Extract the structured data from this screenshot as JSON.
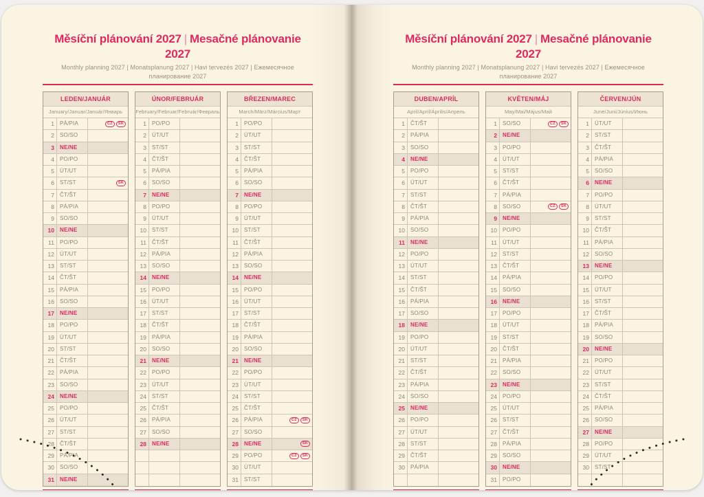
{
  "header": {
    "title_cs": "Měsíční plánování 2027",
    "title_sk": "Mesačné plánovanie 2027",
    "separator": "|",
    "subtitle": "Monthly planning 2027 | Monatsplanung 2027 | Havi tervezés 2027 | Ежемесячное планирование 2027"
  },
  "colors": {
    "paper": "#fcf4e3",
    "headbg": "#ece3d3",
    "sunbg": "#e9e0d1",
    "border": "#cfc5b4",
    "border-dark": "#a69c8b",
    "ink": "#8d8374",
    "muted": "#9a9080",
    "accent": "#dc2a5f",
    "rule": "#bb2c50"
  },
  "rows_per_month": 31,
  "months_left": [
    {
      "name": "LEDEN/JANUÁR",
      "subtitle": "January/Januar/Január/Январь",
      "days": [
        [
          1,
          "PÁ/PIA",
          [
            "CZ",
            "SK"
          ]
        ],
        [
          2,
          "SO/SO"
        ],
        [
          3,
          "NE/NE"
        ],
        [
          4,
          "PO/PO"
        ],
        [
          5,
          "ÚT/UT"
        ],
        [
          6,
          "ST/ST",
          [
            "SK"
          ]
        ],
        [
          7,
          "ČT/ŠT"
        ],
        [
          8,
          "PÁ/PIA"
        ],
        [
          9,
          "SO/SO"
        ],
        [
          10,
          "NE/NE"
        ],
        [
          11,
          "PO/PO"
        ],
        [
          12,
          "ÚT/UT"
        ],
        [
          13,
          "ST/ST"
        ],
        [
          14,
          "ČT/ŠT"
        ],
        [
          15,
          "PÁ/PIA"
        ],
        [
          16,
          "SO/SO"
        ],
        [
          17,
          "NE/NE"
        ],
        [
          18,
          "PO/PO"
        ],
        [
          19,
          "ÚT/UT"
        ],
        [
          20,
          "ST/ST"
        ],
        [
          21,
          "ČT/ŠT"
        ],
        [
          22,
          "PÁ/PIA"
        ],
        [
          23,
          "SO/SO"
        ],
        [
          24,
          "NE/NE"
        ],
        [
          25,
          "PO/PO"
        ],
        [
          26,
          "ÚT/UT"
        ],
        [
          27,
          "ST/ST"
        ],
        [
          28,
          "ČT/ŠT"
        ],
        [
          29,
          "PÁ/PIA"
        ],
        [
          30,
          "SO/SO"
        ],
        [
          31,
          "NE/NE"
        ]
      ]
    },
    {
      "name": "ÚNOR/FEBRUÁR",
      "subtitle": "February/Februar/Február/Февраль",
      "days": [
        [
          1,
          "PO/PO"
        ],
        [
          2,
          "ÚT/UT"
        ],
        [
          3,
          "ST/ST"
        ],
        [
          4,
          "ČT/ŠT"
        ],
        [
          5,
          "PÁ/PIA"
        ],
        [
          6,
          "SO/SO"
        ],
        [
          7,
          "NE/NE"
        ],
        [
          8,
          "PO/PO"
        ],
        [
          9,
          "ÚT/UT"
        ],
        [
          10,
          "ST/ST"
        ],
        [
          11,
          "ČT/ŠT"
        ],
        [
          12,
          "PÁ/PIA"
        ],
        [
          13,
          "SO/SO"
        ],
        [
          14,
          "NE/NE"
        ],
        [
          15,
          "PO/PO"
        ],
        [
          16,
          "ÚT/UT"
        ],
        [
          17,
          "ST/ST"
        ],
        [
          18,
          "ČT/ŠT"
        ],
        [
          19,
          "PÁ/PIA"
        ],
        [
          20,
          "SO/SO"
        ],
        [
          21,
          "NE/NE"
        ],
        [
          22,
          "PO/PO"
        ],
        [
          23,
          "ÚT/UT"
        ],
        [
          24,
          "ST/ST"
        ],
        [
          25,
          "ČT/ŠT"
        ],
        [
          26,
          "PÁ/PIA"
        ],
        [
          27,
          "SO/SO"
        ],
        [
          28,
          "NE/NE"
        ]
      ]
    },
    {
      "name": "BŘEZEN/MAREC",
      "subtitle": "March/März/Március/Март",
      "days": [
        [
          1,
          "PO/PO"
        ],
        [
          2,
          "ÚT/UT"
        ],
        [
          3,
          "ST/ST"
        ],
        [
          4,
          "ČT/ŠT"
        ],
        [
          5,
          "PÁ/PIA"
        ],
        [
          6,
          "SO/SO"
        ],
        [
          7,
          "NE/NE"
        ],
        [
          8,
          "PO/PO"
        ],
        [
          9,
          "ÚT/UT"
        ],
        [
          10,
          "ST/ST"
        ],
        [
          11,
          "ČT/ŠT"
        ],
        [
          12,
          "PÁ/PIA"
        ],
        [
          13,
          "SO/SO"
        ],
        [
          14,
          "NE/NE"
        ],
        [
          15,
          "PO/PO"
        ],
        [
          16,
          "ÚT/UT"
        ],
        [
          17,
          "ST/ST"
        ],
        [
          18,
          "ČT/ŠT"
        ],
        [
          19,
          "PÁ/PIA"
        ],
        [
          20,
          "SO/SO"
        ],
        [
          21,
          "NE/NE"
        ],
        [
          22,
          "PO/PO"
        ],
        [
          23,
          "ÚT/UT"
        ],
        [
          24,
          "ST/ST"
        ],
        [
          25,
          "ČT/ŠT"
        ],
        [
          26,
          "PÁ/PIA",
          [
            "CZ",
            "SK"
          ]
        ],
        [
          27,
          "SO/SO"
        ],
        [
          28,
          "NE/NE",
          [
            "SK"
          ]
        ],
        [
          29,
          "PO/PO",
          [
            "CZ",
            "SK"
          ]
        ],
        [
          30,
          "ÚT/UT"
        ],
        [
          31,
          "ST/ST"
        ]
      ]
    }
  ],
  "months_right": [
    {
      "name": "DUBEN/APRÍL",
      "subtitle": "April/April/Április/Апрель",
      "days": [
        [
          1,
          "ČT/ŠT"
        ],
        [
          2,
          "PÁ/PIA"
        ],
        [
          3,
          "SO/SO"
        ],
        [
          4,
          "NE/NE"
        ],
        [
          5,
          "PO/PO"
        ],
        [
          6,
          "ÚT/UT"
        ],
        [
          7,
          "ST/ST"
        ],
        [
          8,
          "ČT/ŠT"
        ],
        [
          9,
          "PÁ/PIA"
        ],
        [
          10,
          "SO/SO"
        ],
        [
          11,
          "NE/NE"
        ],
        [
          12,
          "PO/PO"
        ],
        [
          13,
          "ÚT/UT"
        ],
        [
          14,
          "ST/ST"
        ],
        [
          15,
          "ČT/ŠT"
        ],
        [
          16,
          "PÁ/PIA"
        ],
        [
          17,
          "SO/SO"
        ],
        [
          18,
          "NE/NE"
        ],
        [
          19,
          "PO/PO"
        ],
        [
          20,
          "ÚT/UT"
        ],
        [
          21,
          "ST/ST"
        ],
        [
          22,
          "ČT/ŠT"
        ],
        [
          23,
          "PÁ/PIA"
        ],
        [
          24,
          "SO/SO"
        ],
        [
          25,
          "NE/NE"
        ],
        [
          26,
          "PO/PO"
        ],
        [
          27,
          "ÚT/UT"
        ],
        [
          28,
          "ST/ST"
        ],
        [
          29,
          "ČT/ŠT"
        ],
        [
          30,
          "PÁ/PIA"
        ]
      ]
    },
    {
      "name": "KVĚTEN/MÁJ",
      "subtitle": "May/Mai/Május/Май",
      "days": [
        [
          1,
          "SO/SO",
          [
            "CZ",
            "SK"
          ]
        ],
        [
          2,
          "NE/NE"
        ],
        [
          3,
          "PO/PO"
        ],
        [
          4,
          "ÚT/UT"
        ],
        [
          5,
          "ST/ST"
        ],
        [
          6,
          "ČT/ŠT"
        ],
        [
          7,
          "PÁ/PIA"
        ],
        [
          8,
          "SO/SO",
          [
            "CZ",
            "SK"
          ]
        ],
        [
          9,
          "NE/NE"
        ],
        [
          10,
          "PO/PO"
        ],
        [
          11,
          "ÚT/UT"
        ],
        [
          12,
          "ST/ST"
        ],
        [
          13,
          "ČT/ŠT"
        ],
        [
          14,
          "PÁ/PIA"
        ],
        [
          15,
          "SO/SO"
        ],
        [
          16,
          "NE/NE"
        ],
        [
          17,
          "PO/PO"
        ],
        [
          18,
          "ÚT/UT"
        ],
        [
          19,
          "ST/ST"
        ],
        [
          20,
          "ČT/ŠT"
        ],
        [
          21,
          "PÁ/PIA"
        ],
        [
          22,
          "SO/SO"
        ],
        [
          23,
          "NE/NE"
        ],
        [
          24,
          "PO/PO"
        ],
        [
          25,
          "ÚT/UT"
        ],
        [
          26,
          "ST/ST"
        ],
        [
          27,
          "ČT/ŠT"
        ],
        [
          28,
          "PÁ/PIA"
        ],
        [
          29,
          "SO/SO"
        ],
        [
          30,
          "NE/NE"
        ],
        [
          31,
          "PO/PO"
        ]
      ]
    },
    {
      "name": "ČERVEN/JÚN",
      "subtitle": "June/Juni/Június/Июнь",
      "days": [
        [
          1,
          "ÚT/UT"
        ],
        [
          2,
          "ST/ST"
        ],
        [
          3,
          "ČT/ŠT"
        ],
        [
          4,
          "PÁ/PIA"
        ],
        [
          5,
          "SO/SO"
        ],
        [
          6,
          "NE/NE"
        ],
        [
          7,
          "PO/PO"
        ],
        [
          8,
          "ÚT/UT"
        ],
        [
          9,
          "ST/ST"
        ],
        [
          10,
          "ČT/ŠT"
        ],
        [
          11,
          "PÁ/PIA"
        ],
        [
          12,
          "SO/SO"
        ],
        [
          13,
          "NE/NE"
        ],
        [
          14,
          "PO/PO"
        ],
        [
          15,
          "ÚT/UT"
        ],
        [
          16,
          "ST/ST"
        ],
        [
          17,
          "ČT/ŠT"
        ],
        [
          18,
          "PÁ/PIA"
        ],
        [
          19,
          "SO/SO"
        ],
        [
          20,
          "NE/NE"
        ],
        [
          21,
          "PO/PO"
        ],
        [
          22,
          "ÚT/UT"
        ],
        [
          23,
          "ST/ST"
        ],
        [
          24,
          "ČT/ŠT"
        ],
        [
          25,
          "PÁ/PIA"
        ],
        [
          26,
          "SO/SO"
        ],
        [
          27,
          "NE/NE"
        ],
        [
          28,
          "PO/PO"
        ],
        [
          29,
          "ÚT/UT"
        ],
        [
          30,
          "ST/ST"
        ]
      ]
    }
  ]
}
